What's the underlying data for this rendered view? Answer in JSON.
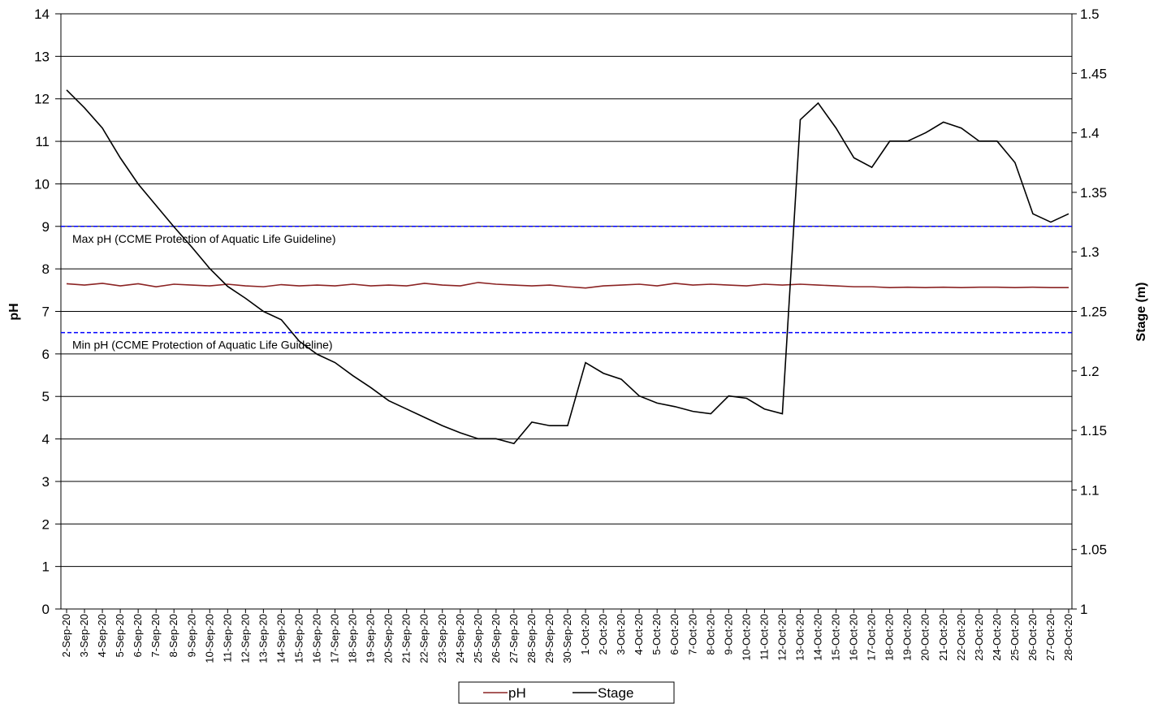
{
  "chart_data": {
    "type": "line",
    "y_label": "pH",
    "y2_label": "Stage (m)",
    "categories": [
      "2-Sep-20",
      "3-Sep-20",
      "4-Sep-20",
      "5-Sep-20",
      "6-Sep-20",
      "7-Sep-20",
      "8-Sep-20",
      "9-Sep-20",
      "10-Sep-20",
      "11-Sep-20",
      "12-Sep-20",
      "13-Sep-20",
      "14-Sep-20",
      "15-Sep-20",
      "16-Sep-20",
      "17-Sep-20",
      "18-Sep-20",
      "19-Sep-20",
      "20-Sep-20",
      "21-Sep-20",
      "22-Sep-20",
      "23-Sep-20",
      "24-Sep-20",
      "25-Sep-20",
      "26-Sep-20",
      "27-Sep-20",
      "28-Sep-20",
      "29-Sep-20",
      "30-Sep-20",
      "1-Oct-20",
      "2-Oct-20",
      "3-Oct-20",
      "4-Oct-20",
      "5-Oct-20",
      "6-Oct-20",
      "7-Oct-20",
      "8-Oct-20",
      "9-Oct-20",
      "10-Oct-20",
      "11-Oct-20",
      "12-Oct-20",
      "13-Oct-20",
      "14-Oct-20",
      "15-Oct-20",
      "16-Oct-20",
      "17-Oct-20",
      "18-Oct-20",
      "19-Oct-20",
      "20-Oct-20",
      "21-Oct-20",
      "22-Oct-20",
      "23-Oct-20",
      "24-Oct-20",
      "25-Oct-20",
      "26-Oct-20",
      "27-Oct-20",
      "28-Oct-20"
    ],
    "series": [
      {
        "name": "pH",
        "color": "#8b2323",
        "values": [
          7.65,
          7.62,
          7.66,
          7.6,
          7.65,
          7.58,
          7.64,
          7.62,
          7.6,
          7.64,
          7.6,
          7.58,
          7.63,
          7.6,
          7.62,
          7.6,
          7.64,
          7.6,
          7.62,
          7.6,
          7.66,
          7.62,
          7.6,
          7.68,
          7.64,
          7.62,
          7.6,
          7.62,
          7.58,
          7.55,
          7.6,
          7.62,
          7.64,
          7.6,
          7.66,
          7.62,
          7.64,
          7.62,
          7.6,
          7.64,
          7.62,
          7.64,
          7.62,
          7.6,
          7.58,
          7.58,
          7.56,
          7.57,
          7.56,
          7.57,
          7.56,
          7.57,
          7.57,
          7.56,
          7.57,
          7.56,
          7.56
        ]
      },
      {
        "name": "Stage",
        "color": "#000000",
        "axis": "y2",
        "values": [
          1.436,
          1.421,
          1.404,
          1.379,
          1.357,
          1.339,
          1.321,
          1.304,
          1.286,
          1.271,
          1.261,
          1.25,
          1.243,
          1.225,
          1.214,
          1.207,
          1.196,
          1.186,
          1.175,
          1.168,
          1.161,
          1.154,
          1.148,
          1.143,
          1.143,
          1.139,
          1.157,
          1.154,
          1.154,
          1.207,
          1.198,
          1.193,
          1.179,
          1.173,
          1.17,
          1.166,
          1.164,
          1.179,
          1.177,
          1.168,
          1.164,
          1.411,
          1.425,
          1.404,
          1.379,
          1.371,
          1.393,
          1.393,
          1.4,
          1.409,
          1.404,
          1.393,
          1.393,
          1.375,
          1.332,
          1.325,
          1.332
        ]
      }
    ],
    "reference_lines": [
      {
        "value": 9,
        "label": "Max pH (CCME Protection of Aquatic Life Guideline)",
        "color": "#0000ff"
      },
      {
        "value": 6.5,
        "label": "Min pH (CCME Protection of Aquatic Life Guideline)",
        "color": "#0000ff"
      }
    ],
    "ylim": [
      0,
      14
    ],
    "yticks": [
      0,
      1,
      2,
      3,
      4,
      5,
      6,
      7,
      8,
      9,
      10,
      11,
      12,
      13,
      14
    ],
    "y2lim": [
      1,
      1.5
    ],
    "y2ticks": [
      1,
      1.05,
      1.1,
      1.15,
      1.2,
      1.25,
      1.3,
      1.35,
      1.4,
      1.45,
      1.5
    ],
    "grid": true,
    "legend": "bottom"
  }
}
